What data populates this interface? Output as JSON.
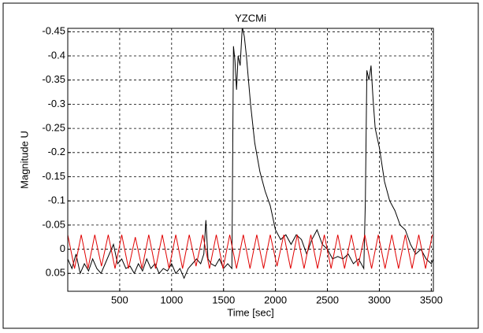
{
  "chart_data": {
    "type": "line",
    "title": "YZCMi",
    "xlabel": "Time  [sec]",
    "ylabel": "Magnitude U",
    "xlim": [
      0,
      3520
    ],
    "xticks": [
      500,
      1000,
      1500,
      2000,
      2500,
      3000,
      3500
    ],
    "ylim": [
      -0.457,
      0.087
    ],
    "y_reversed": true,
    "yticks": [
      -0.45,
      -0.4,
      -0.35,
      -0.3,
      -0.25,
      -0.2,
      -0.15,
      -0.1,
      -0.05,
      0,
      0.05
    ],
    "grid": true,
    "series": [
      {
        "name": "black",
        "color": "#000000",
        "x": [
          0,
          40,
          80,
          120,
          160,
          200,
          240,
          280,
          320,
          360,
          400,
          440,
          480,
          520,
          560,
          600,
          640,
          680,
          720,
          760,
          800,
          840,
          880,
          920,
          960,
          1000,
          1040,
          1080,
          1120,
          1160,
          1200,
          1240,
          1280,
          1310,
          1330,
          1350,
          1380,
          1420,
          1460,
          1500,
          1540,
          1580,
          1595,
          1610,
          1625,
          1640,
          1660,
          1680,
          1700,
          1720,
          1760,
          1800,
          1850,
          1900,
          1950,
          2000,
          2050,
          2100,
          2150,
          2200,
          2250,
          2300,
          2350,
          2400,
          2450,
          2500,
          2550,
          2600,
          2650,
          2700,
          2750,
          2800,
          2850,
          2865,
          2880,
          2900,
          2920,
          2940,
          2960,
          3000,
          3050,
          3100,
          3150,
          3200,
          3250,
          3300,
          3350,
          3400,
          3450,
          3500,
          3520
        ],
        "values": [
          0.02,
          0.04,
          0.01,
          0.05,
          0.03,
          0.045,
          0.02,
          0.04,
          0.05,
          0.03,
          0.01,
          -0.01,
          0.03,
          0.02,
          0.04,
          0.035,
          0.05,
          0.03,
          0.045,
          0.02,
          0.04,
          0.03,
          0.05,
          0.04,
          0.045,
          0.03,
          0.05,
          0.04,
          0.06,
          0.04,
          0.03,
          0.02,
          0.03,
          0.01,
          -0.06,
          0.02,
          0.03,
          0.035,
          0.02,
          0.04,
          0.03,
          0.04,
          -0.42,
          -0.39,
          -0.33,
          -0.4,
          -0.38,
          -0.46,
          -0.44,
          -0.4,
          -0.3,
          -0.22,
          -0.16,
          -0.12,
          -0.09,
          -0.04,
          -0.02,
          -0.03,
          -0.01,
          -0.03,
          -0.02,
          0.01,
          -0.02,
          -0.04,
          -0.01,
          0.0,
          0.02,
          0.015,
          0.02,
          0.01,
          0.03,
          0.02,
          0.04,
          -0.1,
          -0.37,
          -0.35,
          -0.38,
          -0.31,
          -0.25,
          -0.21,
          -0.14,
          -0.1,
          -0.08,
          -0.05,
          -0.04,
          -0.01,
          0.01,
          0.0,
          0.02,
          0.03,
          0.02
        ]
      },
      {
        "name": "red",
        "color": "#e00000",
        "x": [
          0,
          65,
          130,
          195,
          260,
          325,
          390,
          455,
          520,
          585,
          650,
          715,
          780,
          845,
          910,
          975,
          1040,
          1105,
          1170,
          1235,
          1300,
          1365,
          1430,
          1495,
          1560,
          1625,
          1690,
          1755,
          1820,
          1885,
          1950,
          2015,
          2080,
          2145,
          2210,
          2275,
          2340,
          2405,
          2470,
          2535,
          2600,
          2665,
          2730,
          2795,
          2860,
          2925,
          2990,
          3055,
          3120,
          3185,
          3250,
          3315,
          3380,
          3445,
          3510
        ],
        "values": [
          -0.03,
          0.04,
          -0.03,
          0.04,
          -0.03,
          0.035,
          -0.03,
          0.04,
          -0.03,
          0.04,
          -0.025,
          0.04,
          -0.03,
          0.04,
          -0.03,
          0.04,
          -0.03,
          0.04,
          -0.03,
          0.035,
          -0.03,
          0.04,
          -0.03,
          0.04,
          -0.03,
          0.04,
          -0.03,
          0.04,
          -0.03,
          0.04,
          -0.03,
          0.035,
          -0.03,
          0.04,
          -0.03,
          0.04,
          -0.03,
          0.04,
          -0.03,
          0.04,
          -0.03,
          0.04,
          -0.03,
          0.035,
          -0.03,
          0.04,
          -0.03,
          0.04,
          -0.03,
          0.04,
          -0.03,
          0.04,
          -0.03,
          0.04,
          -0.03
        ]
      }
    ]
  }
}
